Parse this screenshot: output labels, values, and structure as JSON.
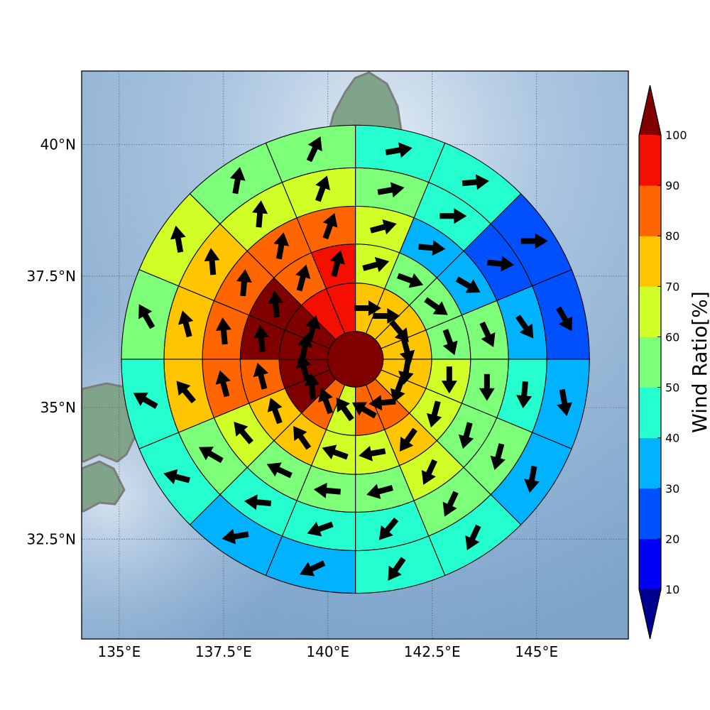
{
  "map": {
    "lon_range": [
      134.1,
      147.2
    ],
    "lat_range": [
      30.6,
      41.4
    ],
    "gridlines": true,
    "xticks": [
      {
        "value": 135,
        "label": "135°E"
      },
      {
        "value": 137.5,
        "label": "137.5°E"
      },
      {
        "value": 140,
        "label": "140°E"
      },
      {
        "value": 142.5,
        "label": "142.5°E"
      },
      {
        "value": 145,
        "label": "145°E"
      }
    ],
    "yticks": [
      {
        "value": 40,
        "label": "40°N"
      },
      {
        "value": 37.5,
        "label": "37.5°N"
      },
      {
        "value": 35,
        "label": "35°N"
      },
      {
        "value": 32.5,
        "label": "32.5°N"
      }
    ],
    "center": {
      "lon": 140.66,
      "lat": 35.92
    },
    "ring_radii_deg_lat": [
      0.53,
      1.45,
      2.19,
      2.91,
      3.64,
      4.45
    ],
    "sectors": 16
  },
  "colorbar": {
    "label": "Wind Ratio[%]",
    "ticks": [
      "10",
      "20",
      "30",
      "40",
      "50",
      "60",
      "70",
      "80",
      "90",
      "100"
    ],
    "bins": [
      {
        "min": 0,
        "max": 10,
        "color": "#00008f"
      },
      {
        "min": 10,
        "max": 20,
        "color": "#0000f5"
      },
      {
        "min": 20,
        "max": 30,
        "color": "#0050ff"
      },
      {
        "min": 30,
        "max": 40,
        "color": "#00b2ff"
      },
      {
        "min": 40,
        "max": 50,
        "color": "#25ffd0"
      },
      {
        "min": 50,
        "max": 60,
        "color": "#7dff7a"
      },
      {
        "min": 60,
        "max": 70,
        "color": "#d0ff27"
      },
      {
        "min": 70,
        "max": 80,
        "color": "#ffc600"
      },
      {
        "min": 80,
        "max": 90,
        "color": "#ff6500"
      },
      {
        "min": 90,
        "max": 100,
        "color": "#f50f00"
      },
      {
        "min": 100,
        "max": 110,
        "color": "#800000"
      }
    ]
  },
  "chart_data": {
    "type": "heatmap",
    "title": "",
    "value_label": "Wind Ratio[%]",
    "note": "polar grid: center cell + 5 rings x 16 compass sectors (sector 0 = NNE, clockwise); cell value = wind ratio %, arrow = wind direction in degrees (bearing the arrow points to)",
    "center_cell": {
      "value": 105,
      "arrow": null
    },
    "rings": [
      {
        "values": [
          75,
          75,
          75,
          75,
          75,
          75,
          85,
          85,
          65,
          85,
          105,
          105,
          105,
          105,
          95,
          95
        ],
        "arrows": [
          90,
          90,
          140,
          165,
          190,
          200,
          265,
          300,
          325,
          340,
          355,
          345,
          10,
          15,
          null,
          null
        ]
      },
      {
        "values": [
          65,
          55,
          55,
          55,
          65,
          65,
          75,
          65,
          65,
          75,
          75,
          85,
          105,
          105,
          85,
          95
        ],
        "arrows": [
          75,
          110,
          125,
          160,
          180,
          195,
          215,
          260,
          290,
          325,
          340,
          345,
          355,
          355,
          15,
          15
        ]
      },
      {
        "values": [
          65,
          35,
          35,
          55,
          55,
          55,
          65,
          55,
          55,
          55,
          65,
          85,
          85,
          85,
          85,
          85
        ],
        "arrows": [
          75,
          95,
          120,
          155,
          180,
          195,
          205,
          255,
          275,
          295,
          320,
          345,
          355,
          5,
          10,
          20
        ]
      },
      {
        "values": [
          55,
          45,
          25,
          35,
          45,
          55,
          55,
          45,
          45,
          45,
          55,
          75,
          75,
          75,
          65,
          65
        ],
        "arrows": [
          80,
          90,
          95,
          145,
          185,
          195,
          205,
          220,
          250,
          275,
          300,
          320,
          345,
          355,
          5,
          20
        ]
      },
      {
        "values": [
          45,
          45,
          25,
          25,
          35,
          35,
          45,
          45,
          35,
          35,
          45,
          45,
          55,
          65,
          55,
          55
        ],
        "arrows": [
          80,
          85,
          90,
          150,
          170,
          190,
          205,
          215,
          245,
          260,
          285,
          300,
          330,
          350,
          10,
          25
        ]
      }
    ]
  }
}
